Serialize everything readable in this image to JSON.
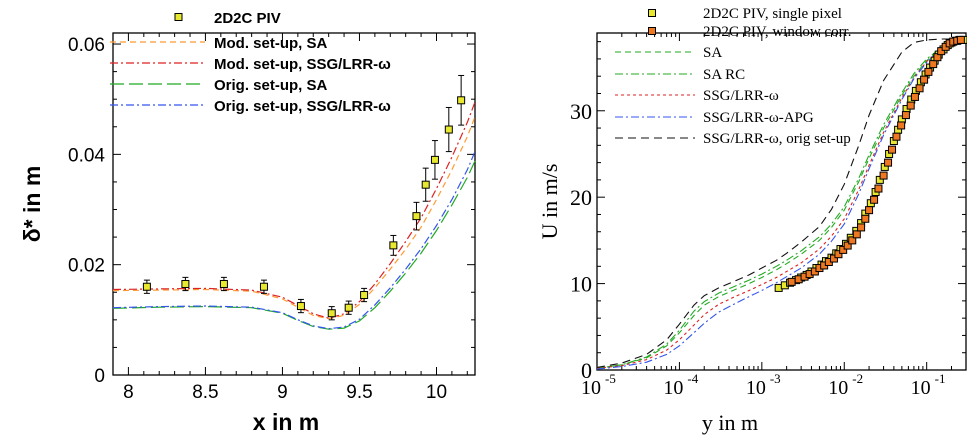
{
  "chart_data": [
    {
      "type": "scatter",
      "title": "",
      "xlabel": "x in m",
      "ylabel": "δ* in m",
      "xlim": [
        7.9,
        10.25
      ],
      "ylim": [
        0,
        0.062
      ],
      "xscale": "linear",
      "yscale": "linear",
      "x_ticks": [
        "8",
        "8.5",
        "9",
        "9.5",
        "10"
      ],
      "y_ticks": [
        "0",
        "0.02",
        "0.04",
        "0.06"
      ],
      "grid": false,
      "legend_position": "top-left",
      "series": [
        {
          "name": "2D2C PIV",
          "kind": "markers",
          "color": "#e8e830",
          "x": [
            8.12,
            8.37,
            8.62,
            8.88,
            9.12,
            9.32,
            9.43,
            9.53,
            9.72,
            9.87,
            9.93,
            9.99,
            10.08,
            10.16
          ],
          "y": [
            0.016,
            0.0165,
            0.0165,
            0.016,
            0.0125,
            0.0112,
            0.0122,
            0.0145,
            0.0235,
            0.0288,
            0.0345,
            0.039,
            0.0445,
            0.0498
          ],
          "err": [
            0.0012,
            0.0012,
            0.0012,
            0.0012,
            0.0012,
            0.0012,
            0.0012,
            0.0012,
            0.0018,
            0.0025,
            0.003,
            0.0035,
            0.004,
            0.0045
          ]
        },
        {
          "name": "Mod. set-up, SA",
          "kind": "line",
          "color": "#ff9933",
          "dash": "6,4",
          "x": [
            7.9,
            8.2,
            8.5,
            8.8,
            9.0,
            9.1,
            9.2,
            9.3,
            9.4,
            9.5,
            9.6,
            9.7,
            9.8,
            9.9,
            10.0,
            10.1,
            10.2,
            10.25
          ],
          "y": [
            0.0153,
            0.0154,
            0.0155,
            0.0152,
            0.0138,
            0.0123,
            0.0108,
            0.0102,
            0.0108,
            0.0128,
            0.0158,
            0.0192,
            0.0228,
            0.0268,
            0.0318,
            0.0372,
            0.0432,
            0.0468
          ]
        },
        {
          "name": "Mod. set-up, SSG/LRR-ω",
          "kind": "line",
          "color": "#dd2222",
          "dash": "8,3,2,3",
          "x": [
            7.9,
            8.2,
            8.5,
            8.8,
            9.0,
            9.1,
            9.2,
            9.3,
            9.4,
            9.5,
            9.6,
            9.7,
            9.8,
            9.9,
            10.0,
            10.1,
            10.2,
            10.25
          ],
          "y": [
            0.0155,
            0.0156,
            0.0157,
            0.0154,
            0.0141,
            0.0126,
            0.0111,
            0.0103,
            0.0111,
            0.0133,
            0.0165,
            0.0202,
            0.0242,
            0.0285,
            0.0338,
            0.0395,
            0.0458,
            0.0495
          ]
        },
        {
          "name": "Orig. set-up, SA",
          "kind": "line",
          "color": "#22aa22",
          "dash": "14,5",
          "x": [
            7.9,
            8.2,
            8.5,
            8.8,
            9.0,
            9.1,
            9.2,
            9.3,
            9.4,
            9.5,
            9.6,
            9.7,
            9.8,
            9.9,
            10.0,
            10.1,
            10.2,
            10.25
          ],
          "y": [
            0.0121,
            0.0123,
            0.0124,
            0.0122,
            0.0112,
            0.0099,
            0.0088,
            0.0083,
            0.0085,
            0.0098,
            0.0122,
            0.0152,
            0.0185,
            0.0221,
            0.0262,
            0.0308,
            0.0358,
            0.0388
          ]
        },
        {
          "name": "Orig. set-up, SSG/LRR-ω",
          "kind": "line",
          "color": "#3355ee",
          "dash": "8,3,2,3",
          "x": [
            7.9,
            8.2,
            8.5,
            8.8,
            9.0,
            9.1,
            9.2,
            9.3,
            9.4,
            9.5,
            9.6,
            9.7,
            9.8,
            9.9,
            10.0,
            10.1,
            10.2,
            10.25
          ],
          "y": [
            0.0122,
            0.0124,
            0.0125,
            0.0123,
            0.0113,
            0.01,
            0.0089,
            0.0084,
            0.0087,
            0.0101,
            0.0127,
            0.0158,
            0.0192,
            0.0229,
            0.0271,
            0.0318,
            0.0372,
            0.0405
          ]
        }
      ]
    },
    {
      "type": "scatter",
      "title": "",
      "xlabel": "y in m",
      "ylabel": "U in m/s",
      "xlim": [
        1e-05,
        0.3
      ],
      "ylim": [
        0,
        39
      ],
      "xscale": "log",
      "yscale": "linear",
      "x_ticks": [
        {
          "base": "10",
          "exp": "-5"
        },
        {
          "base": "10",
          "exp": "-4"
        },
        {
          "base": "10",
          "exp": "-3"
        },
        {
          "base": "10",
          "exp": "-2"
        },
        {
          "base": "10",
          "exp": "-1"
        }
      ],
      "y_ticks": [
        "0",
        "10",
        "20",
        "30"
      ],
      "grid": false,
      "legend_position": "top-left",
      "series": [
        {
          "name": "2D2C PIV, single pixel",
          "kind": "markers",
          "color": "#e8e830",
          "x": [
            0.0016,
            0.0019,
            0.0022,
            0.0026,
            0.003,
            0.0035,
            0.004,
            0.0046,
            0.0053,
            0.006,
            0.007,
            0.008,
            0.009,
            0.0105,
            0.012,
            0.014,
            0.016,
            0.018,
            0.021,
            0.024,
            0.027,
            0.031,
            0.035,
            0.04,
            0.045,
            0.05,
            0.057,
            0.065,
            0.074,
            0.085,
            0.097,
            0.11,
            0.125,
            0.14,
            0.16,
            0.18,
            0.2,
            0.225,
            0.25,
            0.28
          ],
          "y": [
            9.5,
            9.8,
            10.1,
            10.4,
            10.7,
            11.0,
            11.4,
            11.8,
            12.2,
            12.6,
            13.0,
            13.5,
            14.0,
            14.6,
            15.3,
            16.1,
            17.0,
            18.1,
            19.3,
            20.6,
            22.0,
            23.5,
            25.0,
            26.5,
            27.8,
            29.0,
            30.2,
            31.3,
            32.3,
            33.3,
            34.2,
            35.0,
            35.8,
            36.5,
            37.1,
            37.6,
            37.9,
            38.1,
            38.2,
            38.2
          ]
        },
        {
          "name": "2D2C PIV, window corr.",
          "kind": "markers",
          "color": "#ee7722",
          "x": [
            0.0023,
            0.0028,
            0.0033,
            0.0038,
            0.0044,
            0.005,
            0.0057,
            0.0065,
            0.0075,
            0.0085,
            0.0097,
            0.011,
            0.0125,
            0.0142,
            0.016,
            0.018,
            0.02,
            0.023,
            0.026,
            0.03,
            0.034,
            0.038,
            0.043,
            0.049,
            0.056,
            0.064,
            0.072,
            0.082,
            0.093,
            0.105,
            0.12,
            0.135,
            0.15,
            0.17,
            0.19,
            0.21,
            0.235,
            0.26
          ],
          "y": [
            10.2,
            10.5,
            10.8,
            11.1,
            11.4,
            11.8,
            12.1,
            12.5,
            12.9,
            13.4,
            13.9,
            14.4,
            15.0,
            15.7,
            16.5,
            17.5,
            18.5,
            19.7,
            21.0,
            22.5,
            24.0,
            25.5,
            27.0,
            28.3,
            29.5,
            30.6,
            31.6,
            32.6,
            33.6,
            34.5,
            35.4,
            36.2,
            36.9,
            37.4,
            37.8,
            38.0,
            38.1,
            38.2
          ]
        },
        {
          "name": "SA",
          "kind": "line",
          "color": "#22aa22",
          "dash": "6,4",
          "x": [
            1e-05,
            2e-05,
            4e-05,
            7e-05,
            0.0001,
            0.00015,
            0.0002,
            0.0003,
            0.0005,
            0.0007,
            0.001,
            0.0015,
            0.002,
            0.003,
            0.005,
            0.007,
            0.01,
            0.015,
            0.02,
            0.03,
            0.05,
            0.07,
            0.1,
            0.15,
            0.2,
            0.3
          ],
          "y": [
            0.2,
            0.6,
            1.4,
            2.8,
            4.3,
            6.3,
            7.5,
            8.5,
            9.4,
            10.0,
            10.7,
            11.6,
            12.3,
            13.4,
            15.0,
            16.5,
            18.5,
            21.8,
            24.5,
            28.0,
            31.8,
            34.0,
            35.8,
            37.2,
            38.0,
            38.3
          ]
        },
        {
          "name": "SA RC",
          "kind": "line",
          "color": "#22aa22",
          "dash": "8,3,2,3",
          "x": [
            1e-05,
            2e-05,
            4e-05,
            7e-05,
            0.0001,
            0.00015,
            0.0002,
            0.0003,
            0.0005,
            0.0007,
            0.001,
            0.0015,
            0.002,
            0.003,
            0.005,
            0.007,
            0.01,
            0.015,
            0.02,
            0.03,
            0.05,
            0.07,
            0.1,
            0.15,
            0.2,
            0.3
          ],
          "y": [
            0.2,
            0.6,
            1.5,
            3.0,
            4.6,
            6.8,
            7.9,
            8.9,
            9.8,
            10.4,
            11.1,
            12.0,
            12.7,
            13.8,
            15.4,
            16.9,
            18.9,
            22.2,
            24.9,
            28.4,
            32.1,
            34.3,
            36.0,
            37.3,
            38.0,
            38.3
          ]
        },
        {
          "name": "SSG/LRR-ω",
          "kind": "line",
          "color": "#dd2222",
          "dash": "3,3",
          "x": [
            1e-05,
            2e-05,
            4e-05,
            7e-05,
            0.0001,
            0.00015,
            0.0002,
            0.0003,
            0.0005,
            0.0007,
            0.001,
            0.0015,
            0.002,
            0.003,
            0.005,
            0.007,
            0.01,
            0.015,
            0.02,
            0.03,
            0.05,
            0.07,
            0.1,
            0.15,
            0.2,
            0.3
          ],
          "y": [
            0.2,
            0.5,
            1.2,
            2.3,
            3.5,
            5.2,
            6.4,
            7.6,
            8.6,
            9.2,
            9.9,
            10.7,
            11.4,
            12.4,
            14.0,
            15.5,
            17.5,
            20.9,
            23.7,
            27.5,
            31.5,
            33.8,
            35.7,
            37.1,
            37.9,
            38.3
          ]
        },
        {
          "name": "SSG/LRR-ω-APG",
          "kind": "line",
          "color": "#3355ee",
          "dash": "8,3,2,3",
          "x": [
            1e-05,
            2e-05,
            4e-05,
            7e-05,
            0.0001,
            0.00015,
            0.0002,
            0.0003,
            0.0005,
            0.0007,
            0.001,
            0.0015,
            0.002,
            0.003,
            0.005,
            0.007,
            0.01,
            0.015,
            0.02,
            0.03,
            0.05,
            0.07,
            0.1,
            0.15,
            0.2,
            0.3
          ],
          "y": [
            0.1,
            0.4,
            0.9,
            1.8,
            2.8,
            4.3,
            5.4,
            6.7,
            7.8,
            8.5,
            9.2,
            10.1,
            10.8,
            11.8,
            13.4,
            14.9,
            16.9,
            20.4,
            23.3,
            27.2,
            31.3,
            33.7,
            35.6,
            37.1,
            37.9,
            38.3
          ]
        },
        {
          "name": "SSG/LRR-ω, orig set-up",
          "kind": "line",
          "color": "#111111",
          "dash": "8,5",
          "x": [
            1e-05,
            2e-05,
            4e-05,
            7e-05,
            0.0001,
            0.00015,
            0.0002,
            0.0003,
            0.0005,
            0.0007,
            0.001,
            0.0015,
            0.002,
            0.003,
            0.005,
            0.007,
            0.01,
            0.015,
            0.02,
            0.03,
            0.05,
            0.07,
            0.1,
            0.15,
            0.2,
            0.3
          ],
          "y": [
            0.3,
            0.8,
            1.8,
            3.5,
            5.3,
            7.5,
            8.6,
            9.5,
            10.4,
            11.0,
            11.8,
            12.7,
            13.5,
            14.8,
            16.6,
            18.6,
            21.5,
            26.0,
            29.5,
            33.5,
            36.8,
            37.9,
            38.2,
            38.3,
            38.3,
            38.3
          ]
        }
      ]
    }
  ]
}
